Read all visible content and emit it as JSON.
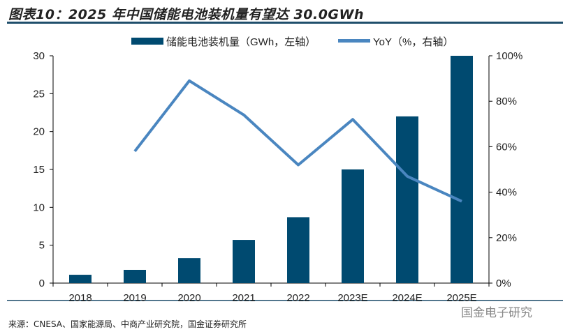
{
  "title": "图表10：2025 年中国储能电池装机量有望达 30.0GWh",
  "source": "来源：CNESA、国家能源局、中商产业研究院，国金证券研究所",
  "watermark": "国金电子研究",
  "colors": {
    "bar": "#004a70",
    "line": "#4a86c0",
    "rule": "#1f4e6b"
  },
  "chart_data": {
    "type": "bar+line",
    "categories": [
      "2018",
      "2019",
      "2020",
      "2021",
      "2022",
      "2023E",
      "2024E",
      "2025E"
    ],
    "series": [
      {
        "name": "储能电池装机量（GWh，左轴）",
        "type": "bar",
        "axis": "left",
        "values": [
          1.1,
          1.75,
          3.3,
          5.7,
          8.7,
          15.0,
          22.0,
          30.0
        ]
      },
      {
        "name": "YoY（%，右轴）",
        "type": "line",
        "axis": "right",
        "values": [
          null,
          58,
          89,
          74,
          52,
          72,
          47,
          36
        ]
      }
    ],
    "y_left": {
      "range": [
        0,
        30
      ],
      "ticks": [
        "0",
        "5",
        "10",
        "15",
        "20",
        "25",
        "30"
      ]
    },
    "y_right": {
      "range": [
        0,
        100
      ],
      "ticks": [
        "0%",
        "20%",
        "40%",
        "60%",
        "80%",
        "100%"
      ]
    },
    "legend": "top-center",
    "grid": false
  }
}
